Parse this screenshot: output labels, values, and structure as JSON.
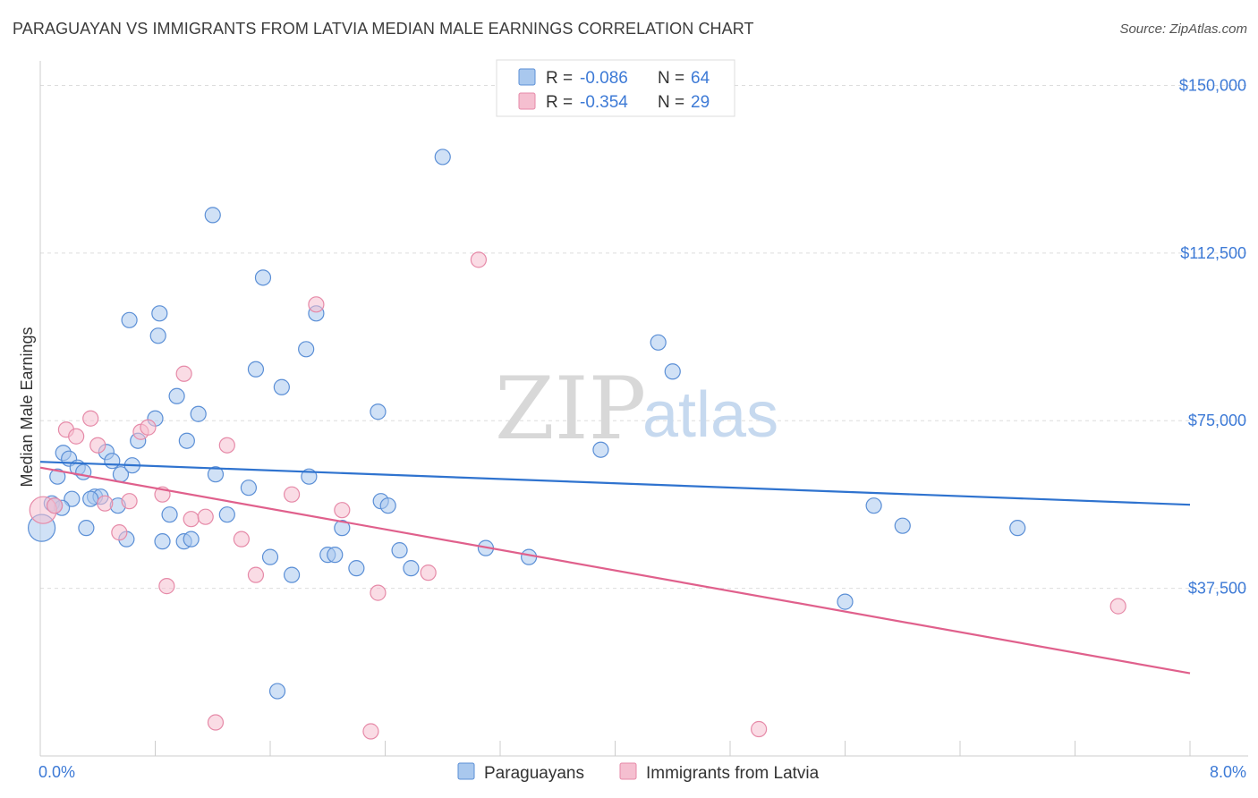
{
  "title": "PARAGUAYAN VS IMMIGRANTS FROM LATVIA MEDIAN MALE EARNINGS CORRELATION CHART",
  "source": "Source: ZipAtlas.com",
  "watermark": {
    "zip": "ZIP",
    "atlas": "atlas"
  },
  "colors": {
    "blue_fill": "#a9c8ee",
    "blue_stroke": "#5b8fd6",
    "blue_line": "#2f73cf",
    "pink_fill": "#f5bfd0",
    "pink_stroke": "#e68aa8",
    "pink_line": "#e0608c",
    "grid": "#dddddd",
    "axis_text": "#3d7ad6"
  },
  "legend": {
    "r_label": "R =",
    "n_label": "N =",
    "series": [
      {
        "r": "-0.086",
        "n": "64"
      },
      {
        "r": "-0.354",
        "n": "29"
      }
    ]
  },
  "chart_data": {
    "type": "scatter",
    "title": "PARAGUAYAN VS IMMIGRANTS FROM LATVIA MEDIAN MALE EARNINGS CORRELATION CHART",
    "xlabel": "",
    "ylabel": "Median Male Earnings",
    "xlim": [
      0,
      8
    ],
    "ylim": [
      0,
      157500
    ],
    "x_tick_labels": [
      "0.0%",
      "8.0%"
    ],
    "y_ticks": [
      37500,
      75000,
      112500,
      150000
    ],
    "y_tick_labels": [
      "$37,500",
      "$75,000",
      "$112,500",
      "$150,000"
    ],
    "legend_position": "top-center",
    "series": [
      {
        "name": "Paraguayans",
        "color": "#5b8fd6",
        "trend": {
          "x": [
            0,
            8
          ],
          "y": [
            65800,
            56200
          ]
        },
        "points": [
          {
            "x": 0.01,
            "y": 51000,
            "big": true
          },
          {
            "x": 0.08,
            "y": 56500
          },
          {
            "x": 0.12,
            "y": 62500
          },
          {
            "x": 0.16,
            "y": 67800
          },
          {
            "x": 0.2,
            "y": 66500
          },
          {
            "x": 0.22,
            "y": 57500
          },
          {
            "x": 0.26,
            "y": 64500
          },
          {
            "x": 0.3,
            "y": 63500
          },
          {
            "x": 0.32,
            "y": 51000
          },
          {
            "x": 0.38,
            "y": 58000
          },
          {
            "x": 0.42,
            "y": 58000
          },
          {
            "x": 0.46,
            "y": 68000
          },
          {
            "x": 0.5,
            "y": 66000
          },
          {
            "x": 0.54,
            "y": 56000
          },
          {
            "x": 0.56,
            "y": 63000
          },
          {
            "x": 0.6,
            "y": 48500
          },
          {
            "x": 0.62,
            "y": 97500
          },
          {
            "x": 0.64,
            "y": 65000
          },
          {
            "x": 0.68,
            "y": 70500
          },
          {
            "x": 0.8,
            "y": 75500
          },
          {
            "x": 0.85,
            "y": 48000
          },
          {
            "x": 0.9,
            "y": 54000
          },
          {
            "x": 0.95,
            "y": 80500
          },
          {
            "x": 1.0,
            "y": 48000
          },
          {
            "x": 1.02,
            "y": 70500
          },
          {
            "x": 1.05,
            "y": 48500
          },
          {
            "x": 1.1,
            "y": 76500
          },
          {
            "x": 1.2,
            "y": 121000
          },
          {
            "x": 1.22,
            "y": 63000
          },
          {
            "x": 1.3,
            "y": 54000
          },
          {
            "x": 1.45,
            "y": 60000
          },
          {
            "x": 1.5,
            "y": 86500
          },
          {
            "x": 1.55,
            "y": 107000
          },
          {
            "x": 1.6,
            "y": 44500
          },
          {
            "x": 1.65,
            "y": 14500
          },
          {
            "x": 1.68,
            "y": 82500
          },
          {
            "x": 1.75,
            "y": 40500
          },
          {
            "x": 1.85,
            "y": 91000
          },
          {
            "x": 1.87,
            "y": 62500
          },
          {
            "x": 1.92,
            "y": 99000
          },
          {
            "x": 2.0,
            "y": 45000
          },
          {
            "x": 2.05,
            "y": 45000
          },
          {
            "x": 2.1,
            "y": 51000
          },
          {
            "x": 2.2,
            "y": 42000
          },
          {
            "x": 2.35,
            "y": 77000
          },
          {
            "x": 2.37,
            "y": 57000
          },
          {
            "x": 2.42,
            "y": 56000
          },
          {
            "x": 2.5,
            "y": 46000
          },
          {
            "x": 2.58,
            "y": 42000
          },
          {
            "x": 2.8,
            "y": 134000
          },
          {
            "x": 3.1,
            "y": 46500
          },
          {
            "x": 3.4,
            "y": 44500
          },
          {
            "x": 3.9,
            "y": 68500
          },
          {
            "x": 4.3,
            "y": 92500
          },
          {
            "x": 4.4,
            "y": 86000
          },
          {
            "x": 5.6,
            "y": 34500
          },
          {
            "x": 5.8,
            "y": 56000
          },
          {
            "x": 6.0,
            "y": 51500
          },
          {
            "x": 6.8,
            "y": 51000
          },
          {
            "x": 0.82,
            "y": 94000
          },
          {
            "x": 0.83,
            "y": 99000
          },
          {
            "x": 0.35,
            "y": 57500
          },
          {
            "x": 0.15,
            "y": 55500
          },
          {
            "x": 0.1,
            "y": 56000
          }
        ]
      },
      {
        "name": "Immigrants from Latvia",
        "color": "#e68aa8",
        "trend": {
          "x": [
            0,
            8
          ],
          "y": [
            64500,
            18500
          ]
        },
        "points": [
          {
            "x": 0.02,
            "y": 55000,
            "big": true
          },
          {
            "x": 0.1,
            "y": 56000
          },
          {
            "x": 0.18,
            "y": 73000
          },
          {
            "x": 0.25,
            "y": 71500
          },
          {
            "x": 0.35,
            "y": 75500
          },
          {
            "x": 0.4,
            "y": 69500
          },
          {
            "x": 0.45,
            "y": 56500
          },
          {
            "x": 0.55,
            "y": 50000
          },
          {
            "x": 0.62,
            "y": 57000
          },
          {
            "x": 0.7,
            "y": 72500
          },
          {
            "x": 0.75,
            "y": 73500
          },
          {
            "x": 0.85,
            "y": 58500
          },
          {
            "x": 0.88,
            "y": 38000
          },
          {
            "x": 1.0,
            "y": 85500
          },
          {
            "x": 1.05,
            "y": 53000
          },
          {
            "x": 1.15,
            "y": 53500
          },
          {
            "x": 1.22,
            "y": 7500
          },
          {
            "x": 1.3,
            "y": 69500
          },
          {
            "x": 1.4,
            "y": 48500
          },
          {
            "x": 1.5,
            "y": 40500
          },
          {
            "x": 1.75,
            "y": 58500
          },
          {
            "x": 1.92,
            "y": 101000
          },
          {
            "x": 2.1,
            "y": 55000
          },
          {
            "x": 2.3,
            "y": 5500
          },
          {
            "x": 2.35,
            "y": 36500
          },
          {
            "x": 2.7,
            "y": 41000
          },
          {
            "x": 3.05,
            "y": 111000
          },
          {
            "x": 5.0,
            "y": 6000
          },
          {
            "x": 7.5,
            "y": 33500
          }
        ]
      }
    ]
  }
}
